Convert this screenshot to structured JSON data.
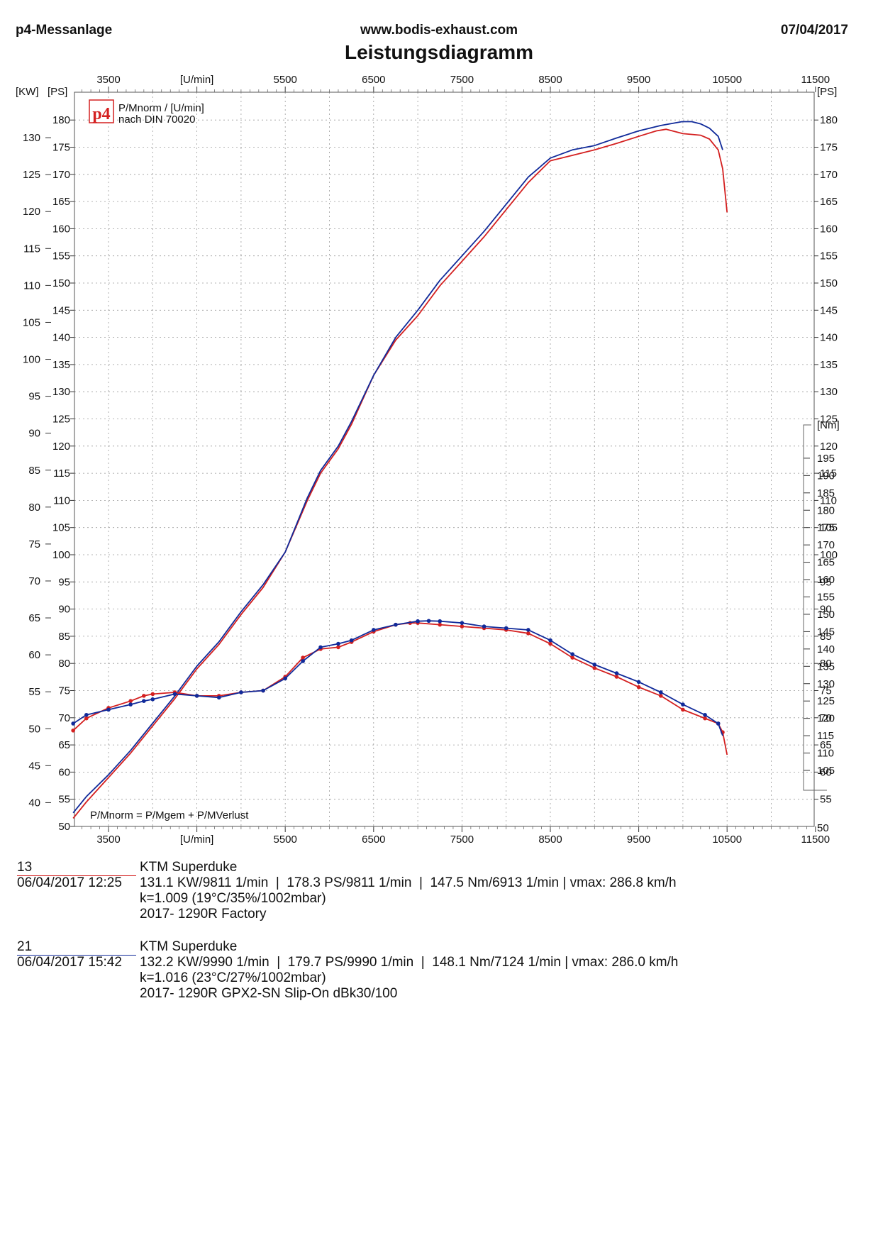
{
  "header": {
    "left": "p4-Messanlage",
    "center": "www.bodis-exhaust.com",
    "right": "07/04/2017",
    "title": "Leistungsdiagramm"
  },
  "colors": {
    "run1": "#d42020",
    "run2": "#102a9a",
    "grid": "#888888",
    "logo": "#d42020"
  },
  "chart_data": {
    "type": "line",
    "title": "Leistungsdiagramm",
    "xlabel": "[U/min]",
    "ylabel_left_kw": "[KW]",
    "ylabel_left_ps": "[PS]",
    "ylabel_right_ps": "[PS]",
    "ylabel_right_nm": "[Nm]",
    "xlim": [
      3100,
      11500
    ],
    "ylim_ps": [
      50,
      185
    ],
    "ylim_nm": [
      95,
      200
    ],
    "x_ticks": [
      3500,
      4500,
      5500,
      6500,
      7500,
      8500,
      9500,
      10500,
      11500
    ],
    "x_tick_labels_bottom": [
      "3500",
      "[U/min]",
      "5500",
      "6500",
      "7500",
      "8500",
      "9500",
      "10500",
      "11500"
    ],
    "x_tick_labels_top": [
      "3500",
      "[U/min]",
      "5500",
      "6500",
      "7500",
      "8500",
      "9500",
      "10500",
      "11500"
    ],
    "ps_ticks": [
      50,
      55,
      60,
      65,
      70,
      75,
      80,
      85,
      90,
      95,
      100,
      105,
      110,
      115,
      120,
      125,
      130,
      135,
      140,
      145,
      150,
      155,
      160,
      165,
      170,
      175,
      180
    ],
    "kw_ticks": [
      40,
      45,
      50,
      55,
      60,
      65,
      70,
      75,
      80,
      85,
      90,
      95,
      100,
      105,
      110,
      115,
      120,
      125,
      130
    ],
    "nm_ticks": [
      105,
      110,
      115,
      120,
      125,
      130,
      135,
      140,
      145,
      150,
      155,
      160,
      165,
      170,
      175,
      180,
      185,
      190,
      195
    ],
    "right_bottom_label": "50",
    "legend": {
      "line1": "P/Mnorm / [U/min]",
      "line2": "nach DIN 70020",
      "logo": "p4"
    },
    "annotation": "P/Mnorm = P/Mgem + P/MVerlust",
    "grid": true,
    "series": [
      {
        "name": "13",
        "measure": "power",
        "x": [
          3100,
          3250,
          3500,
          3750,
          4000,
          4250,
          4500,
          4750,
          5000,
          5250,
          5500,
          5750,
          5900,
          6100,
          6250,
          6500,
          6750,
          7000,
          7250,
          7500,
          7750,
          8000,
          8250,
          8500,
          8750,
          9000,
          9250,
          9500,
          9700,
          9811,
          10000,
          10200,
          10300,
          10400,
          10450,
          10500
        ],
        "y": [
          51.5,
          54.5,
          59,
          63.5,
          68.5,
          73.5,
          79,
          83.5,
          89,
          94,
          100.5,
          110,
          115,
          119.5,
          124,
          133,
          139.5,
          144,
          149.5,
          154,
          158.5,
          163.5,
          168.5,
          172.5,
          173.5,
          174.5,
          175.7,
          177,
          178,
          178.3,
          177.5,
          177.2,
          176.5,
          174.5,
          171,
          163
        ]
      },
      {
        "name": "21",
        "measure": "power",
        "x": [
          3100,
          3250,
          3500,
          3750,
          4000,
          4250,
          4500,
          4750,
          5000,
          5250,
          5500,
          5750,
          5900,
          6100,
          6250,
          6500,
          6750,
          7000,
          7250,
          7500,
          7750,
          8000,
          8250,
          8500,
          8750,
          9000,
          9250,
          9500,
          9750,
          9990,
          10100,
          10200,
          10300,
          10400,
          10450
        ],
        "y": [
          52.5,
          55.5,
          59.5,
          64,
          69,
          74,
          79.5,
          84,
          89.5,
          94.5,
          100.5,
          110.5,
          115.5,
          120,
          124.5,
          133,
          140,
          145,
          150.5,
          155,
          159.5,
          164.5,
          169.5,
          173,
          174.5,
          175.3,
          176.7,
          178,
          179,
          179.7,
          179.7,
          179.3,
          178.5,
          177,
          174.5
        ]
      },
      {
        "name": "13",
        "measure": "torque",
        "x": [
          3100,
          3250,
          3500,
          3750,
          3900,
          4000,
          4250,
          4500,
          4750,
          5000,
          5250,
          5500,
          5700,
          5900,
          6100,
          6250,
          6500,
          6750,
          6913,
          7000,
          7250,
          7500,
          7750,
          8000,
          8250,
          8500,
          8750,
          9000,
          9250,
          9500,
          9750,
          10000,
          10250,
          10400,
          10450,
          10500
        ],
        "y": [
          116.5,
          120,
          123,
          125,
          126.5,
          127,
          127.5,
          126.5,
          126.5,
          127.5,
          128,
          132,
          137.5,
          140,
          140.5,
          142,
          145,
          147,
          147.5,
          147.5,
          147,
          146.5,
          146,
          145.5,
          144.5,
          141.5,
          137.5,
          134.5,
          132,
          129,
          126.5,
          122.5,
          120,
          118.5,
          116,
          109.5
        ]
      },
      {
        "name": "21",
        "measure": "torque",
        "x": [
          3100,
          3250,
          3500,
          3750,
          3900,
          4000,
          4250,
          4500,
          4750,
          5000,
          5250,
          5500,
          5700,
          5900,
          6100,
          6250,
          6500,
          6750,
          7000,
          7124,
          7250,
          7500,
          7750,
          8000,
          8250,
          8500,
          8750,
          9000,
          9250,
          9500,
          9750,
          10000,
          10250,
          10400,
          10450
        ],
        "y": [
          118.5,
          121,
          122.5,
          124,
          125,
          125.5,
          127,
          126.5,
          126,
          127.5,
          128,
          131.5,
          136.5,
          140.5,
          141.5,
          142.5,
          145.5,
          147,
          148,
          148.1,
          148,
          147.5,
          146.5,
          146,
          145.5,
          142.5,
          138.5,
          135.5,
          133,
          130.5,
          127.5,
          124,
          121,
          118.5,
          115
        ]
      }
    ]
  },
  "runs": [
    {
      "number": "13",
      "datetime": "06/04/2017  12:25",
      "vehicle": "KTM Superduke",
      "results": "131.1 KW/9811 1/min  |  178.3 PS/9811 1/min  |  147.5 Nm/6913 1/min | vmax: 286.8 km/h",
      "conditions": "k=1.009 (19°C/35%/1002mbar)",
      "description": "2017- 1290R Factory"
    },
    {
      "number": "21",
      "datetime": "06/04/2017  15:42",
      "vehicle": "KTM Superduke",
      "results": "132.2 KW/9990 1/min  |  179.7 PS/9990 1/min  |  148.1 Nm/7124 1/min | vmax: 286.0 km/h",
      "conditions": "k=1.016 (23°C/27%/1002mbar)",
      "description": "2017- 1290R GPX2-SN Slip-On dBk30/100"
    }
  ]
}
